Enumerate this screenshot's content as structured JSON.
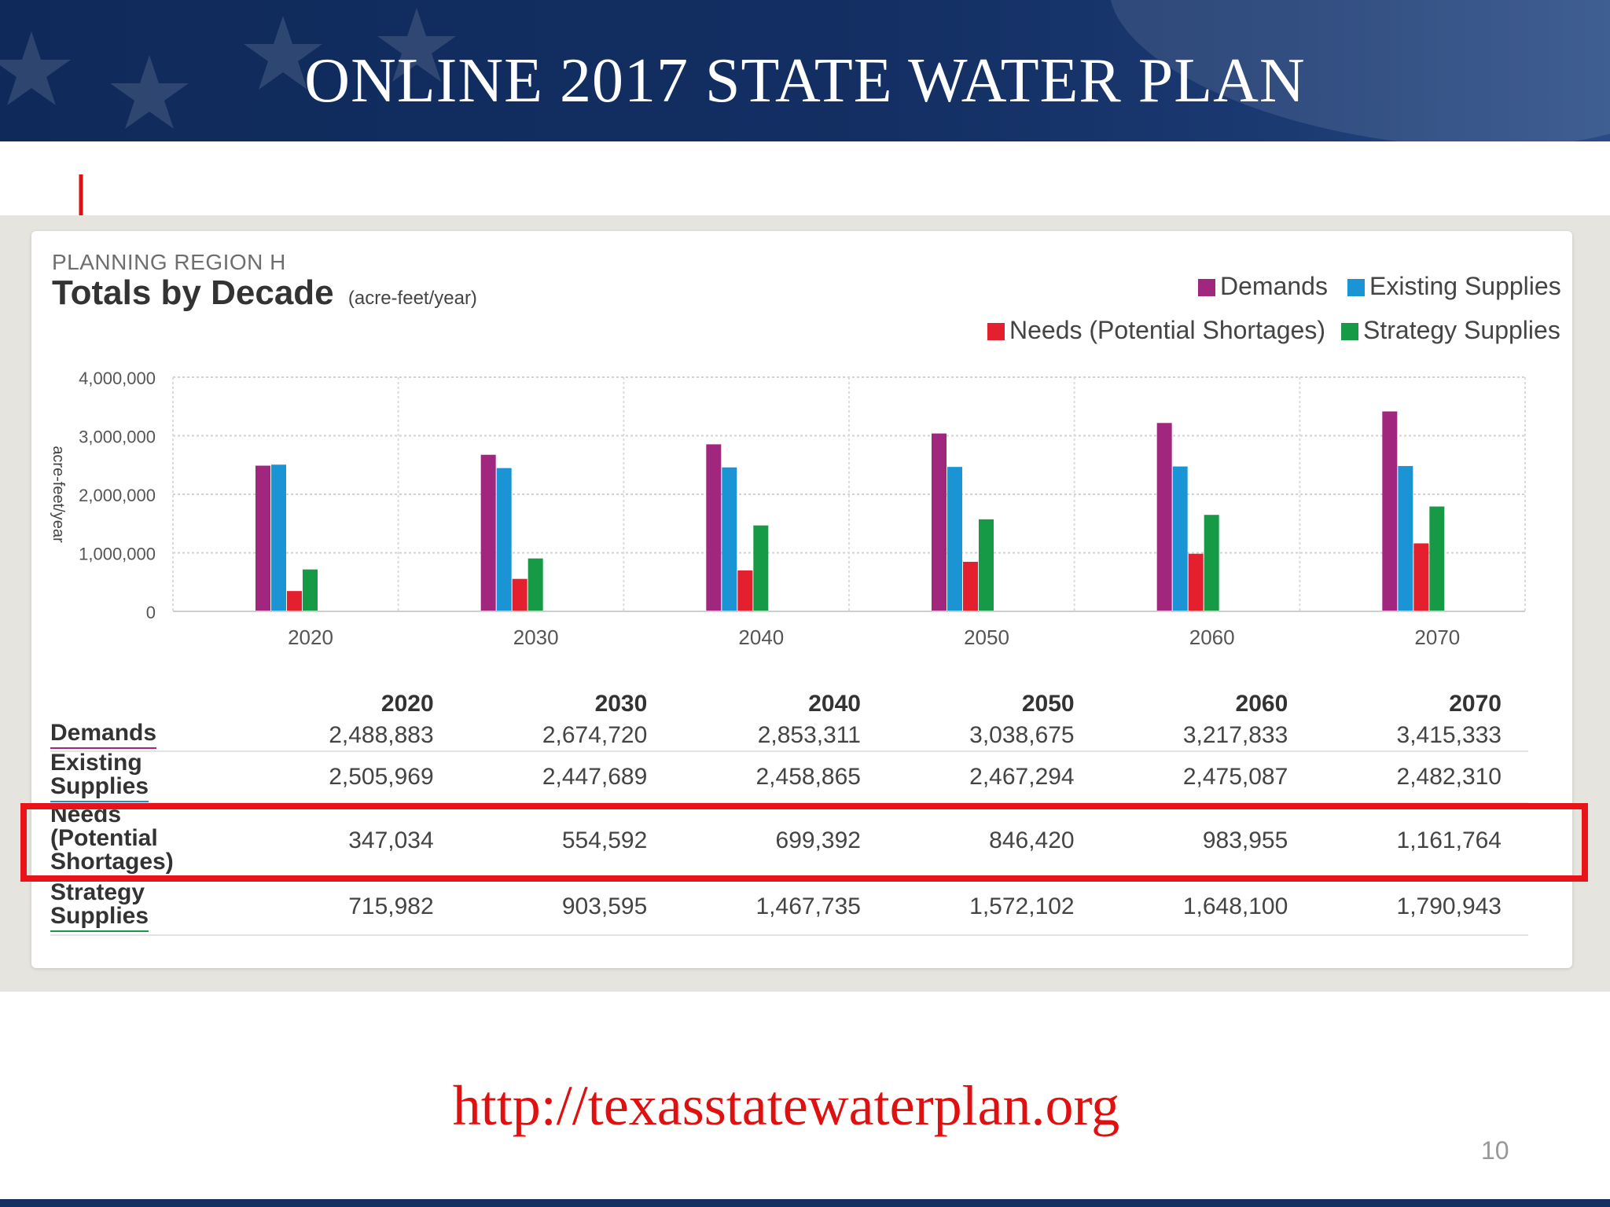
{
  "slide": {
    "title": "ONLINE 2017 STATE WATER PLAN",
    "url": "http://texasstatewaterplan.org",
    "page_number": "10",
    "colors": {
      "banner": "#132f63",
      "url": "#e01010",
      "highlight": "#e8141a"
    }
  },
  "panel": {
    "region": "PLANNING REGION H",
    "heading": "Totals by Decade",
    "unit": "(acre-feet/year)"
  },
  "chart_data": {
    "type": "bar",
    "categories": [
      "2020",
      "2030",
      "2040",
      "2050",
      "2060",
      "2070"
    ],
    "series": [
      {
        "name": "Demands",
        "color": "#a0267e",
        "values": [
          2488883,
          2674720,
          2853311,
          3038675,
          3217833,
          3415333
        ]
      },
      {
        "name": "Existing Supplies",
        "color": "#1a94d4",
        "values": [
          2505969,
          2447689,
          2458865,
          2467294,
          2475087,
          2482310
        ]
      },
      {
        "name": "Needs (Potential Shortages)",
        "color": "#e5202e",
        "values": [
          347034,
          554592,
          699392,
          846420,
          983955,
          1161764
        ]
      },
      {
        "name": "Strategy Supplies",
        "color": "#179a45",
        "values": [
          715982,
          903595,
          1467735,
          1572102,
          1648100,
          1790943
        ]
      }
    ],
    "ylabel": "acre-feet/year",
    "ylim": [
      0,
      4000000
    ],
    "yticks": [
      "0",
      "1,000,000",
      "2,000,000",
      "3,000,000",
      "4,000,000"
    ],
    "grid": true,
    "legend": "top-right"
  },
  "table": {
    "headers": [
      "2020",
      "2030",
      "2040",
      "2050",
      "2060",
      "2070"
    ],
    "rows": [
      {
        "label": [
          "Demands"
        ],
        "underline": "#a0267e",
        "values": [
          "2,488,883",
          "2,674,720",
          "2,853,311",
          "3,038,675",
          "3,217,833",
          "3,415,333"
        ]
      },
      {
        "label": [
          "Existing",
          "Supplies"
        ],
        "underline": "#1a94d4",
        "values": [
          "2,505,969",
          "2,447,689",
          "2,458,865",
          "2,467,294",
          "2,475,087",
          "2,482,310"
        ]
      },
      {
        "label": [
          "Needs",
          "(Potential",
          "Shortages)"
        ],
        "underline": "#e5202e",
        "values": [
          "347,034",
          "554,592",
          "699,392",
          "846,420",
          "983,955",
          "1,161,764"
        ]
      },
      {
        "label": [
          "Strategy",
          "Supplies"
        ],
        "underline": "#179a45",
        "values": [
          "715,982",
          "903,595",
          "1,467,735",
          "1,572,102",
          "1,648,100",
          "1,790,943"
        ]
      }
    ]
  }
}
